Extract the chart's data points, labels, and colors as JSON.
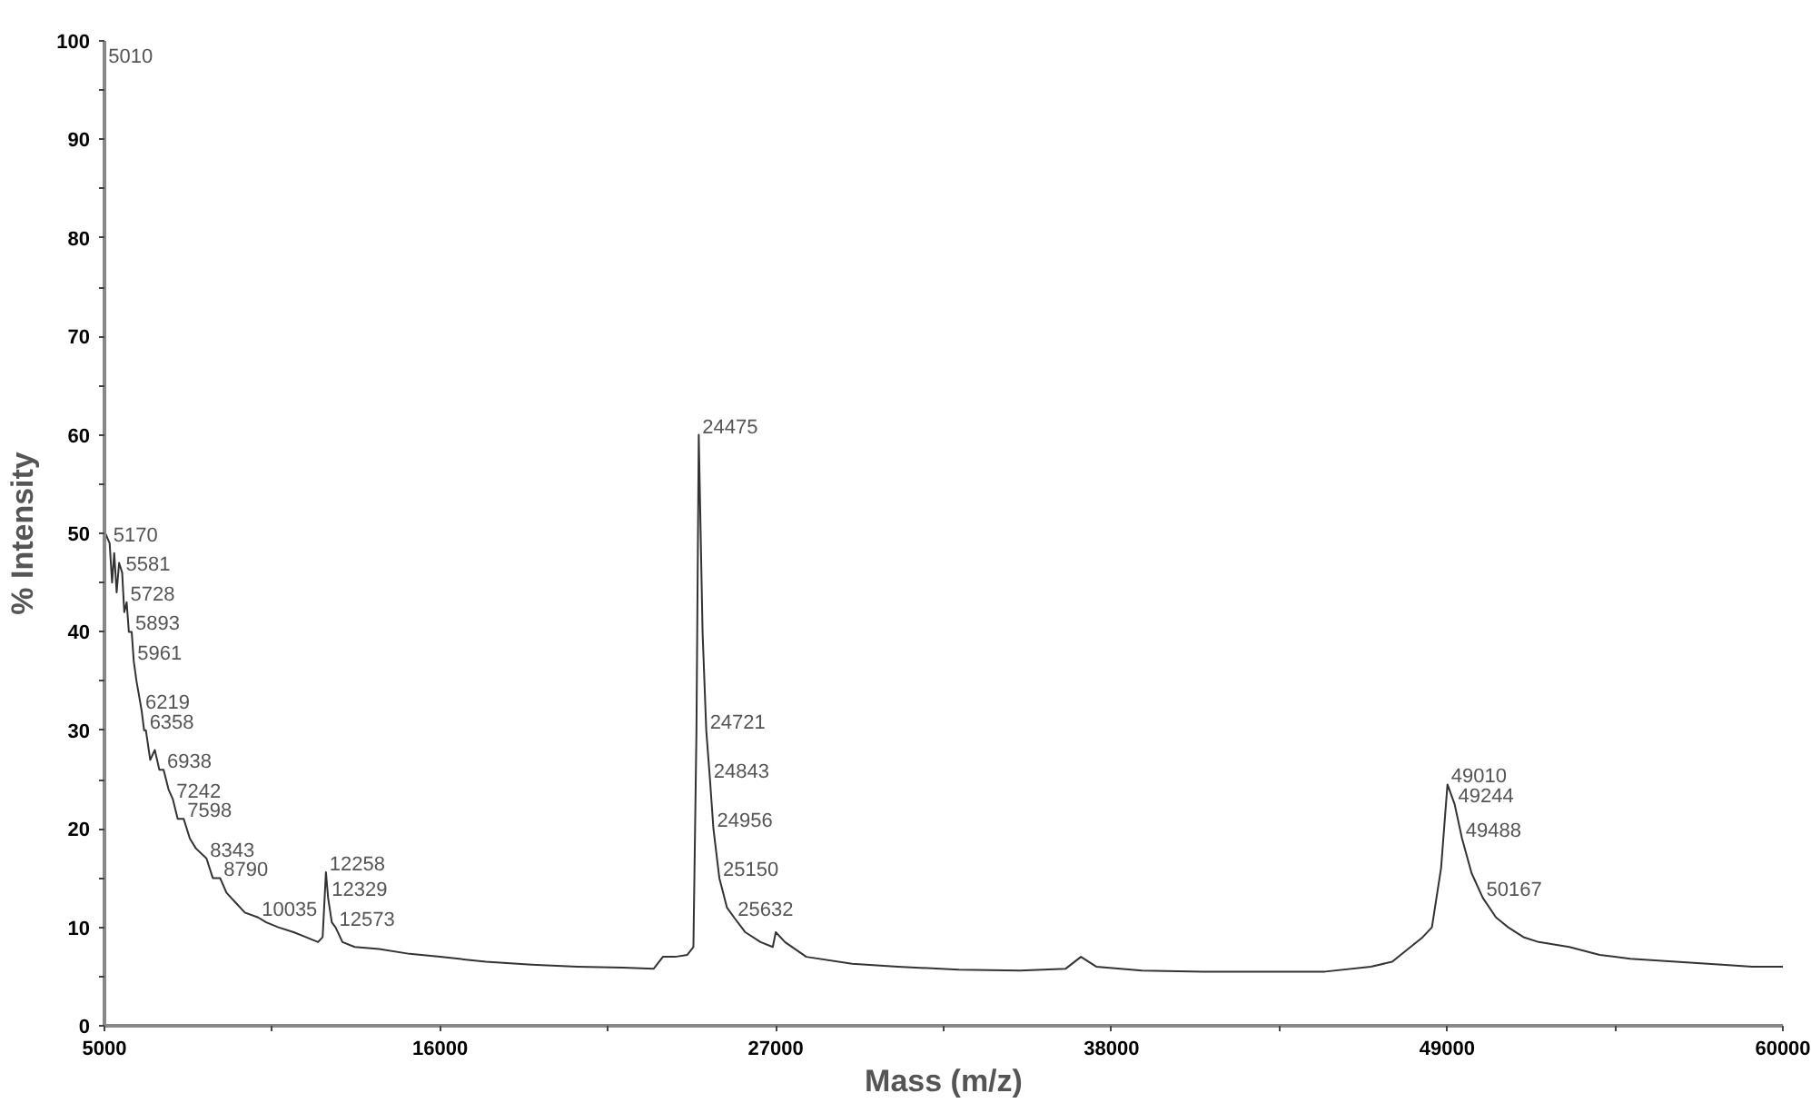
{
  "chart_data": {
    "type": "line",
    "xlabel": "Mass (m/z)",
    "ylabel": "% Intensity",
    "xlim": [
      5000,
      60000
    ],
    "ylim": [
      0,
      100
    ],
    "xticks": [
      5000,
      {
        "value": 10500,
        "label": null
      },
      16000,
      {
        "value": 21500,
        "label": null
      },
      27000,
      {
        "value": 32500,
        "label": null
      },
      38000,
      {
        "value": 43500,
        "label": null
      },
      49000,
      {
        "value": 54500,
        "label": null
      },
      60000
    ],
    "yticks": [
      0,
      {
        "value": 5,
        "label": null
      },
      10,
      {
        "value": 15,
        "label": null
      },
      20,
      {
        "value": 25,
        "label": null
      },
      30,
      {
        "value": 35,
        "label": null
      },
      40,
      {
        "value": 45,
        "label": null
      },
      50,
      {
        "value": 55,
        "label": null
      },
      60,
      {
        "value": 65,
        "label": null
      },
      70,
      {
        "value": 75,
        "label": null
      },
      80,
      {
        "value": 85,
        "label": null
      },
      90,
      {
        "value": 95,
        "label": null
      },
      100
    ],
    "grid": false,
    "marker": "none",
    "line_style": "solid",
    "series": [
      {
        "color": "#333333",
        "x": [
          5000,
          5010,
          5030,
          5170,
          5250,
          5320,
          5400,
          5480,
          5581,
          5650,
          5728,
          5800,
          5893,
          5961,
          6050,
          6219,
          6300,
          6358,
          6500,
          6650,
          6800,
          6938,
          7100,
          7242,
          7400,
          7598,
          7800,
          8000,
          8343,
          8550,
          8790,
          9000,
          9300,
          9600,
          10035,
          10300,
          10700,
          11200,
          11600,
          12000,
          12150,
          12258,
          12329,
          12450,
          12573,
          12800,
          13200,
          14000,
          15000,
          16000,
          17500,
          19000,
          20500,
          22000,
          23000,
          23300,
          23700,
          24100,
          24300,
          24400,
          24475,
          24600,
          24721,
          24843,
          24956,
          25150,
          25400,
          25632,
          26000,
          26500,
          26900,
          27000,
          27300,
          28000,
          29500,
          31000,
          33000,
          35000,
          36500,
          37000,
          37500,
          39000,
          41000,
          43000,
          45000,
          46500,
          47200,
          47800,
          48200,
          48500,
          48800,
          49010,
          49244,
          49488,
          49800,
          50167,
          50600,
          51000,
          51500,
          52000,
          53000,
          54000,
          55000,
          56500,
          58000,
          59000,
          60000
        ],
        "values": [
          50,
          100,
          50,
          49,
          45,
          48,
          44,
          47,
          46,
          42,
          43,
          40,
          40,
          37,
          35,
          32,
          30,
          30,
          27,
          28,
          26,
          26,
          24,
          23,
          21,
          21,
          19,
          18,
          17,
          15,
          15,
          13.5,
          12.5,
          11.5,
          11,
          10.5,
          10,
          9.5,
          9,
          8.5,
          9,
          15.6,
          13,
          10.5,
          10,
          8.5,
          8,
          7.8,
          7.3,
          7,
          6.5,
          6.2,
          6,
          5.9,
          5.8,
          7,
          7,
          7.2,
          8,
          30,
          60,
          40,
          30,
          25,
          20,
          15,
          12,
          11,
          9.5,
          8.5,
          8,
          9.5,
          8.5,
          7,
          6.3,
          6,
          5.7,
          5.6,
          5.8,
          7,
          6,
          5.6,
          5.5,
          5.5,
          5.5,
          6,
          6.5,
          8,
          9,
          10,
          16,
          24.5,
          22.5,
          19,
          15.5,
          13,
          11,
          10,
          9,
          8.5,
          8,
          7.2,
          6.8,
          6.5,
          6.2,
          6,
          6
        ]
      }
    ],
    "annotations": [
      {
        "text": "5010",
        "x": 5010,
        "y": 100
      },
      {
        "text": "5170",
        "x": 5170,
        "y": 49
      },
      {
        "text": "5581",
        "x": 5581,
        "y": 46
      },
      {
        "text": "5728",
        "x": 5728,
        "y": 43
      },
      {
        "text": "5893",
        "x": 5893,
        "y": 40
      },
      {
        "text": "5961",
        "x": 5961,
        "y": 37
      },
      {
        "text": "6219",
        "x": 6219,
        "y": 32
      },
      {
        "text": "6358",
        "x": 6358,
        "y": 30
      },
      {
        "text": "6938",
        "x": 6938,
        "y": 26
      },
      {
        "text": "7242",
        "x": 7242,
        "y": 23
      },
      {
        "text": "7598",
        "x": 7598,
        "y": 21
      },
      {
        "text": "8343",
        "x": 8343,
        "y": 17
      },
      {
        "text": "8790",
        "x": 8790,
        "y": 15
      },
      {
        "text": "10035",
        "x": 10035,
        "y": 11
      },
      {
        "text": "12258",
        "x": 12258,
        "y": 15.6
      },
      {
        "text": "12329",
        "x": 12329,
        "y": 13
      },
      {
        "text": "12573",
        "x": 12573,
        "y": 10
      },
      {
        "text": "24475",
        "x": 24475,
        "y": 60
      },
      {
        "text": "24721",
        "x": 24721,
        "y": 30
      },
      {
        "text": "24843",
        "x": 24843,
        "y": 25
      },
      {
        "text": "24956",
        "x": 24956,
        "y": 20
      },
      {
        "text": "25150",
        "x": 25150,
        "y": 15
      },
      {
        "text": "25632",
        "x": 25632,
        "y": 11
      },
      {
        "text": "49010",
        "x": 49010,
        "y": 24.5
      },
      {
        "text": "49244",
        "x": 49244,
        "y": 22.5
      },
      {
        "text": "49488",
        "x": 49488,
        "y": 19
      },
      {
        "text": "50167",
        "x": 50167,
        "y": 13
      }
    ]
  }
}
